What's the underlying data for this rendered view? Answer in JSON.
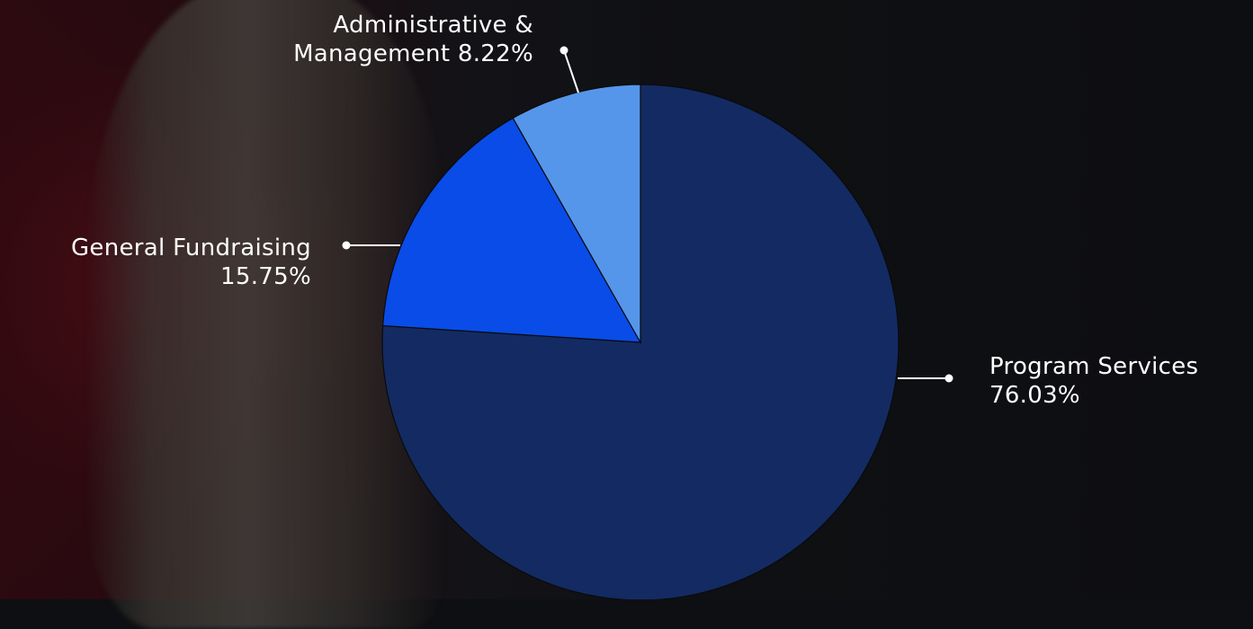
{
  "chart_data": {
    "type": "pie",
    "slices": [
      {
        "label_line1": "Program Services",
        "label_line2": "76.03%",
        "value": 76.03,
        "color": "#132b62"
      },
      {
        "label_line1": "General Fundraising",
        "label_line2": "15.75%",
        "value": 15.75,
        "color": "#0a4ce8"
      },
      {
        "label_line1": "Administrative &",
        "label_line2": "Management 8.22%",
        "value": 8.22,
        "color": "#5596ea"
      }
    ]
  }
}
